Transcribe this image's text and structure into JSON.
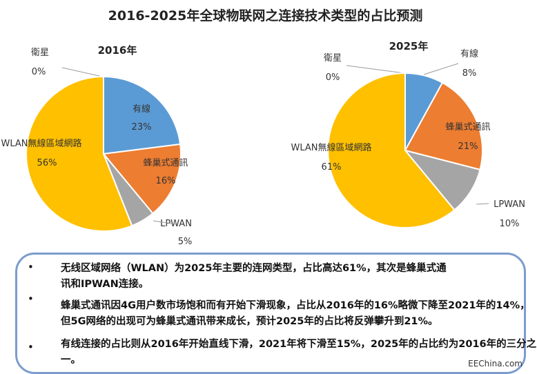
{
  "title": "2016-2025年全球物联网之连接技术类型的占比预测",
  "colors": {
    "有線": "#5b9bd5",
    "蜂巢式通訊": "#ed7d31",
    "LPWAN": "#a5a5a5",
    "WLAN無線區域網路": "#ffc000",
    "衛星": "#4472c4"
  },
  "chart_data": [
    {
      "type": "pie",
      "title": "2016年",
      "categories": [
        "有線",
        "蜂巢式通訊",
        "LPWAN",
        "WLAN無線區域網路",
        "衛星"
      ],
      "values": [
        23,
        16,
        5,
        56,
        0
      ],
      "labels": [
        "23%",
        "16%",
        "5%",
        "56%",
        "0%"
      ]
    },
    {
      "type": "pie",
      "title": "2025年",
      "categories": [
        "有線",
        "蜂巢式通訊",
        "LPWAN",
        "WLAN無線區域網路",
        "衛星"
      ],
      "values": [
        8,
        21,
        10,
        61,
        0
      ],
      "labels": [
        "8%",
        "21%",
        "10%",
        "61%",
        "0%"
      ]
    }
  ],
  "bullets": [
    "无线区域网络（WLAN）为2025年主要的连网类型，占比高达61%，其次是蜂巢式通讯和IPWAN连接。",
    "蜂巢式通讯因4G用户数市场饱和而有开始下滑现象，占比从2016年的16%略微下降至2021年的14%，但5G网络的出现可为蜂巢式通讯带来成长，预计2025年的占比将反弹攀升到21%。",
    "有线连接的占比则从2016年开始直线下滑，2021年将下滑至15%，2025年的占比约为2016年的三分之一。"
  ],
  "bullet_symbol": "•",
  "watermark": "EEChina.com"
}
